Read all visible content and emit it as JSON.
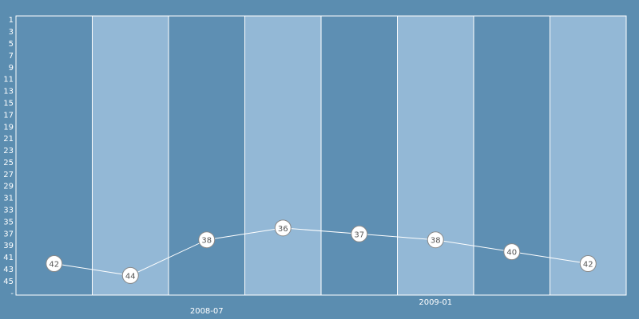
{
  "chart_data": {
    "type": "line",
    "categories": [
      null,
      null,
      "2008-07",
      null,
      null,
      "2009-01",
      null,
      null
    ],
    "series": [
      {
        "color": "#ffffff",
        "values": [
          42,
          44,
          38,
          36,
          37,
          38,
          40,
          42
        ]
      }
    ],
    "ylim": [
      47.3,
      0.3
    ],
    "yticks": [
      1,
      3,
      5,
      7,
      9,
      11,
      13,
      15,
      17,
      19,
      21,
      23,
      25,
      27,
      29,
      31,
      33,
      35,
      37,
      39,
      41,
      43,
      45,
      {
        "value": 47,
        "label": "-"
      }
    ],
    "band_colors": [
      "#5e8fb3",
      "#93b8d6"
    ],
    "background": "#5b8db0"
  }
}
